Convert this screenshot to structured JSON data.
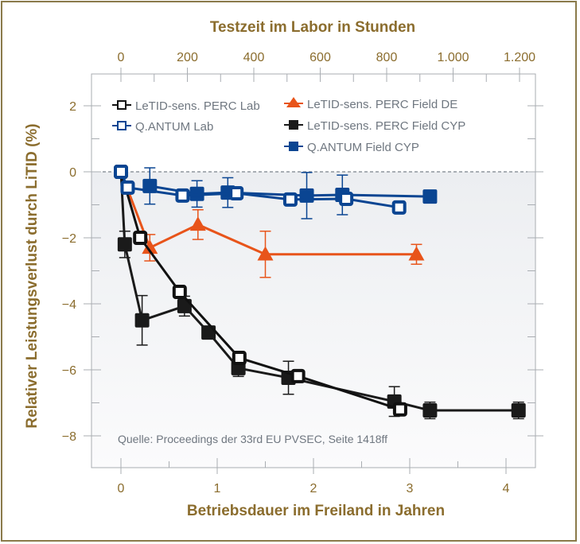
{
  "chart_data": {
    "type": "line",
    "title": "",
    "top_axis_title": "Testzeit im Labor in Stunden",
    "xlabel": "Betriebsdauer im Freiland in Jahren",
    "ylabel": "Relativer Leistungsverlust durch LiTID (%)",
    "xlim": [
      -0.3,
      4.3
    ],
    "ylim": [
      -9,
      3
    ],
    "top_xlim_hours": [
      -87,
      1247
    ],
    "x_ticks": [
      0,
      1,
      2,
      3,
      4
    ],
    "x_tick_labels": [
      "0",
      "1",
      "2",
      "3",
      "4"
    ],
    "y_ticks": [
      2,
      0,
      -2,
      -4,
      -6,
      -8
    ],
    "y_tick_labels": [
      "2",
      "0",
      "−2",
      "−4",
      "−6",
      "−8"
    ],
    "top_ticks_hours": [
      0,
      200,
      400,
      600,
      800,
      1000,
      1200
    ],
    "top_tick_labels": [
      "0",
      "200",
      "400",
      "600",
      "800",
      "1.000",
      "1.200"
    ],
    "reference_line": {
      "y": 0,
      "style": "dashed"
    },
    "legend_position": "top-inside",
    "annotation": "Quelle: Proceedings der 33rd EU PVSEC, Seite 1418ff",
    "series": [
      {
        "name": "LeTID-sens. PERC Lab",
        "color": "#111111",
        "marker": "square-open",
        "x": [
          0,
          0.2,
          0.61,
          1.23,
          1.84,
          2.9
        ],
        "y": [
          0,
          -2.0,
          -3.64,
          -5.64,
          -6.19,
          -7.2
        ],
        "err": [
          0,
          0,
          0,
          0,
          0,
          0
        ]
      },
      {
        "name": "Q.ANTUM Lab",
        "color": "#0a4592",
        "marker": "square-open",
        "x": [
          0,
          0.07,
          0.64,
          1.2,
          1.76,
          2.34,
          2.89
        ],
        "y": [
          0,
          -0.48,
          -0.72,
          -0.65,
          -0.84,
          -0.82,
          -1.08
        ],
        "err": [
          0,
          0,
          0,
          0,
          0,
          0,
          0
        ]
      },
      {
        "name": "LeTID-sens. PERC Field DE",
        "color": "#e8541a",
        "marker": "triangle",
        "x": [
          0,
          0.3,
          0.8,
          1.5,
          3.07
        ],
        "y": [
          0,
          -2.3,
          -1.6,
          -2.5,
          -2.5
        ],
        "err": [
          0,
          0.4,
          0.45,
          0.7,
          0.3
        ]
      },
      {
        "name": "LeTID-sens. PERC Field CYP",
        "color": "#1a1a1a",
        "marker": "square-filled",
        "x": [
          0,
          0.04,
          0.22,
          0.66,
          0.91,
          1.22,
          1.74,
          2.84,
          3.21,
          4.13
        ],
        "y": [
          0,
          -2.2,
          -4.5,
          -4.07,
          -4.87,
          -5.95,
          -6.24,
          -6.96,
          -7.23,
          -7.23
        ],
        "err": [
          0,
          0.4,
          0.75,
          0.3,
          0,
          0.25,
          0.5,
          0.45,
          0.25,
          0.25
        ]
      },
      {
        "name": "Q.ANTUM Field CYP",
        "color": "#0a4592",
        "marker": "square-filled",
        "x": [
          0.3,
          0.79,
          1.11,
          1.93,
          2.3,
          3.21
        ],
        "y": [
          -0.43,
          -0.67,
          -0.63,
          -0.72,
          -0.7,
          -0.75
        ],
        "err": [
          0.55,
          0.4,
          0.45,
          0.7,
          0.6,
          0
        ]
      }
    ]
  }
}
